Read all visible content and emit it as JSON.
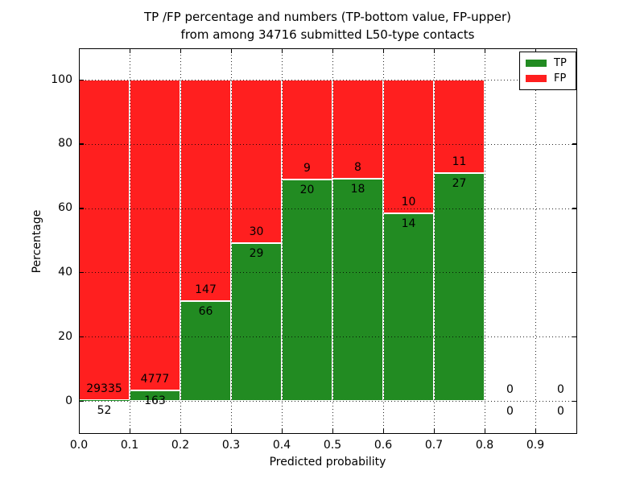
{
  "figure": {
    "title_line1": "TP /FP percentage and numbers (TP-bottom value, FP-upper)",
    "title_line2": "from among 34716 submitted L50-type contacts"
  },
  "chart_data": {
    "type": "bar",
    "variant": "stacked-percentage",
    "title": "TP /FP percentage and numbers (TP-bottom value, FP-upper) from among 34716 submitted L50-type contacts",
    "xlabel": "Predicted probability",
    "ylabel": "Percentage",
    "x_tick_values": [
      0.0,
      0.1,
      0.2,
      0.3,
      0.4,
      0.5,
      0.6,
      0.7,
      0.8,
      0.9
    ],
    "x_tick_labels": [
      "0.0",
      "0.1",
      "0.2",
      "0.3",
      "0.4",
      "0.5",
      "0.6",
      "0.7",
      "0.8",
      "0.9"
    ],
    "y_tick_values": [
      0,
      20,
      40,
      60,
      80,
      100
    ],
    "y_tick_labels": [
      "0",
      "20",
      "40",
      "60",
      "80",
      "100"
    ],
    "xlim": [
      0.0,
      0.982
    ],
    "ylim": [
      -11,
      110
    ],
    "grid": "dotted",
    "total_contacts": 34716,
    "legend": {
      "position": "upper right",
      "entries": [
        {
          "label": "TP",
          "color": "#228b22"
        },
        {
          "label": "FP",
          "color": "#ff1f1f"
        }
      ]
    },
    "bins": [
      {
        "x_start": 0.0,
        "x_end": 0.1,
        "tp": 52,
        "fp": 29335
      },
      {
        "x_start": 0.1,
        "x_end": 0.2,
        "tp": 163,
        "fp": 4777
      },
      {
        "x_start": 0.2,
        "x_end": 0.3,
        "tp": 66,
        "fp": 147
      },
      {
        "x_start": 0.3,
        "x_end": 0.4,
        "tp": 29,
        "fp": 30
      },
      {
        "x_start": 0.4,
        "x_end": 0.5,
        "tp": 20,
        "fp": 9
      },
      {
        "x_start": 0.5,
        "x_end": 0.6,
        "tp": 18,
        "fp": 8
      },
      {
        "x_start": 0.6,
        "x_end": 0.7,
        "tp": 14,
        "fp": 10
      },
      {
        "x_start": 0.7,
        "x_end": 0.8,
        "tp": 27,
        "fp": 11
      },
      {
        "x_start": 0.8,
        "x_end": 0.9,
        "tp": 0,
        "fp": 0
      },
      {
        "x_start": 0.9,
        "x_end": 1.0,
        "tp": 0,
        "fp": 0
      }
    ]
  },
  "colors": {
    "tp": "#228b22",
    "fp": "#ff1f1f",
    "bar_edge": "#ffffff",
    "grid": "#000000",
    "background": "#ffffff",
    "text": "#000000"
  }
}
